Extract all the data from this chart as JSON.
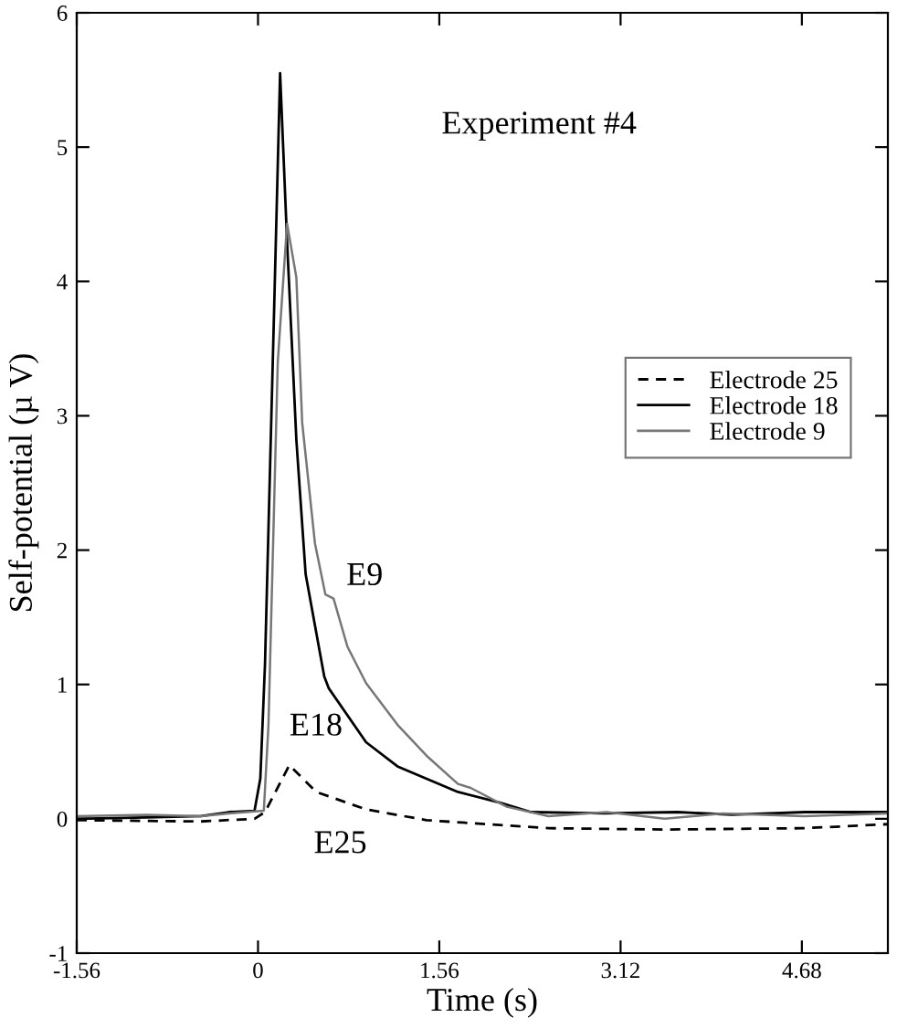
{
  "chart_data": {
    "type": "line",
    "xlabel": "Time (s)",
    "ylabel": "Self-potential (µ V)",
    "xlim": [
      -1.56,
      5.42
    ],
    "xticks": [
      -1.56,
      0,
      1.56,
      3.12,
      4.68
    ],
    "ylim": [
      -1,
      6
    ],
    "yticks": [
      -1,
      0,
      1,
      2,
      3,
      4,
      5,
      6
    ],
    "grid": false,
    "legend": "right",
    "marker": "none",
    "annotations": [
      "Experiment #4",
      "E9",
      "E18",
      "E25"
    ],
    "series": [
      {
        "name": "Electrode 25",
        "color": "#000000",
        "line_style": "dashed",
        "x": [
          -1.56,
          -0.5,
          -0.03,
          0.06,
          0.27,
          0.5,
          0.93,
          1.45,
          2.5,
          3.5,
          4.7,
          5.42
        ],
        "values": [
          -0.01,
          -0.02,
          0.0,
          0.05,
          0.4,
          0.2,
          0.07,
          -0.01,
          -0.07,
          -0.08,
          -0.07,
          -0.04
        ]
      },
      {
        "name": "Electrode 18",
        "color": "#000000",
        "line_style": "solid",
        "x": [
          -1.56,
          -0.96,
          -0.49,
          -0.25,
          -0.03,
          0.02,
          0.06,
          0.14,
          0.19,
          0.25,
          0.33,
          0.41,
          0.57,
          0.61,
          0.93,
          1.2,
          1.72,
          2.08,
          2.35,
          2.98,
          3.61,
          4.08,
          4.71,
          5.42
        ],
        "values": [
          0.0,
          0.01,
          0.02,
          0.05,
          0.06,
          0.3,
          1.15,
          3.84,
          5.55,
          4.3,
          2.82,
          1.82,
          1.06,
          0.97,
          0.57,
          0.39,
          0.2,
          0.12,
          0.05,
          0.04,
          0.05,
          0.03,
          0.05,
          0.05
        ]
      },
      {
        "name": "Electrode 9",
        "color": "#777777",
        "line_style": "solid",
        "x": [
          -1.56,
          -0.96,
          -0.49,
          -0.25,
          0.05,
          0.09,
          0.17,
          0.25,
          0.33,
          0.38,
          0.49,
          0.58,
          0.65,
          0.77,
          0.93,
          1.2,
          1.45,
          1.72,
          1.83,
          2.14,
          2.5,
          3.0,
          3.5,
          4.0,
          4.7,
          5.42
        ],
        "values": [
          0.02,
          0.03,
          0.02,
          0.04,
          0.06,
          0.7,
          3.4,
          4.43,
          4.03,
          2.95,
          2.05,
          1.67,
          1.64,
          1.28,
          1.01,
          0.7,
          0.47,
          0.26,
          0.23,
          0.09,
          0.02,
          0.05,
          0.0,
          0.04,
          0.02,
          0.04
        ]
      }
    ]
  }
}
